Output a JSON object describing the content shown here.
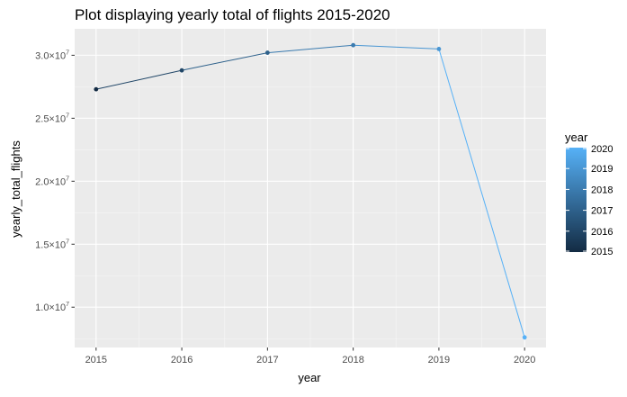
{
  "chart_data": {
    "type": "line",
    "title": "Plot displaying yearly total of flights 2015-2020",
    "xlabel": "year",
    "ylabel": "yearly_total_flights",
    "x": [
      2015,
      2016,
      2017,
      2018,
      2019,
      2020
    ],
    "series": [
      {
        "values": [
          27300000,
          28800000,
          30200000,
          30800000,
          30500000,
          7600000
        ]
      }
    ],
    "xlim": [
      2014.75,
      2020.25
    ],
    "ylim": [
      6800000,
      32100000
    ],
    "xticks": [
      2015,
      2016,
      2017,
      2018,
      2019,
      2020
    ],
    "yticks": [
      10000000,
      15000000,
      20000000,
      25000000,
      30000000
    ],
    "ytick_mantissas": [
      "1.0",
      "1.5",
      "2.0",
      "2.5",
      "3.0"
    ],
    "ytick_exponent": "7",
    "grid": true,
    "legend": {
      "title": "year",
      "placement": "right",
      "labels": [
        "2020",
        "2019",
        "2018",
        "2017",
        "2016",
        "2015"
      ],
      "color_low": "#132b43",
      "color_high": "#56b1f7"
    },
    "colors": {
      "panel_background": "#ebebeb",
      "grid_major": "#ffffff",
      "grid_minor": "#f5f5f5"
    }
  }
}
